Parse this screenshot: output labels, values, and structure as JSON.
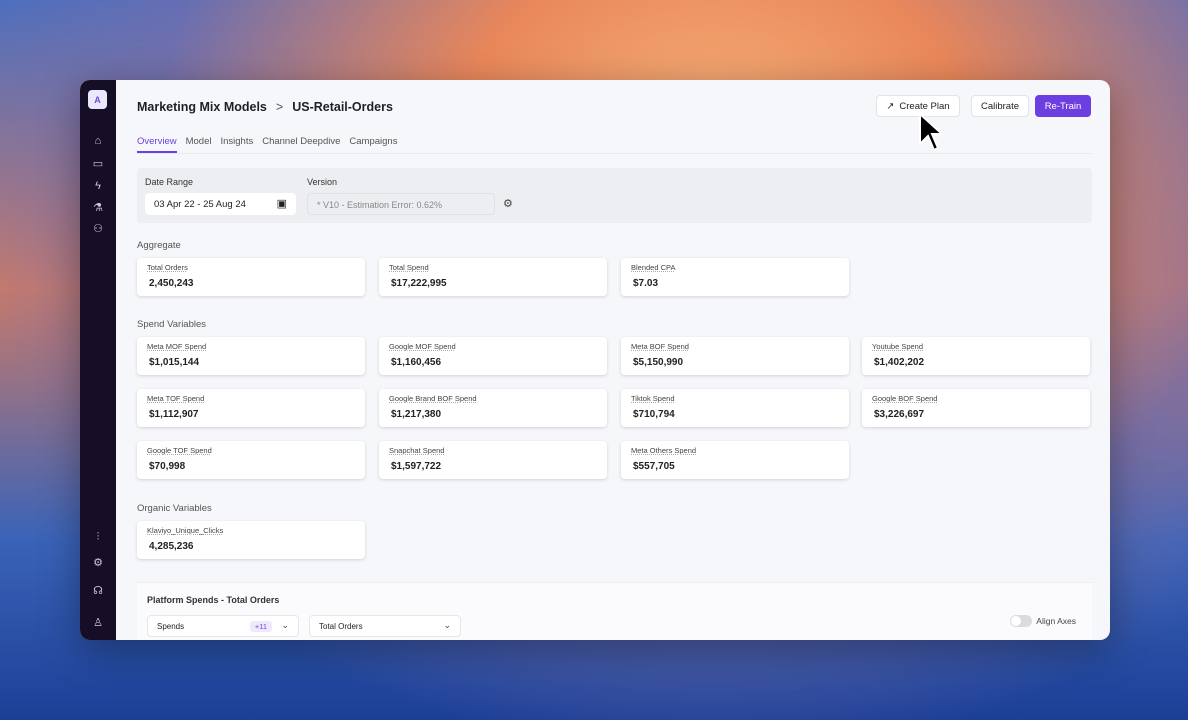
{
  "logo": "A",
  "breadcrumb": {
    "parent": "Marketing Mix Models",
    "separator": ">",
    "current": "US-Retail-Orders"
  },
  "buttons": {
    "create_plan": "Create Plan",
    "calibrate": "Calibrate",
    "retrain": "Re-Train"
  },
  "tabs": [
    {
      "label": "Overview",
      "active": true
    },
    {
      "label": "Model"
    },
    {
      "label": "Insights"
    },
    {
      "label": "Channel Deepdive"
    },
    {
      "label": "Campaigns"
    }
  ],
  "filters": {
    "date_label": "Date Range",
    "date_value": "03 Apr 22 - 25 Aug 24",
    "version_label": "Version",
    "version_value": "* V10 - Estimation Error: 0.62%"
  },
  "aggregate": {
    "title": "Aggregate",
    "cards": [
      {
        "label": "Total Orders",
        "value": "2,450,243"
      },
      {
        "label": "Total Spend",
        "value": "$17,222,995"
      },
      {
        "label": "Blended CPA",
        "value": "$7.03"
      }
    ]
  },
  "spend": {
    "title": "Spend Variables",
    "cards": [
      {
        "label": "Meta MOF Spend",
        "value": "$1,015,144"
      },
      {
        "label": "Google MOF Spend",
        "value": "$1,160,456"
      },
      {
        "label": "Meta BOF Spend",
        "value": "$5,150,990"
      },
      {
        "label": "Youtube Spend",
        "value": "$1,402,202"
      },
      {
        "label": "Meta TOF Spend",
        "value": "$1,112,907"
      },
      {
        "label": "Google Brand BOF Spend",
        "value": "$1,217,380"
      },
      {
        "label": "Tiktok Spend",
        "value": "$710,794"
      },
      {
        "label": "Google BOF Spend",
        "value": "$3,226,697"
      },
      {
        "label": "Google TOF Spend",
        "value": "$70,998"
      },
      {
        "label": "Snapchat Spend",
        "value": "$1,597,722"
      },
      {
        "label": "Meta Others Spend",
        "value": "$557,705"
      }
    ]
  },
  "organic": {
    "title": "Organic Variables",
    "cards": [
      {
        "label": "Klaviyo_Unique_Clicks",
        "value": "4,285,236"
      }
    ]
  },
  "chart_panel": {
    "title": "Platform Spends - Total Orders",
    "spends_select": "Spends",
    "spends_badge": "+11",
    "metric_select": "Total Orders",
    "align_axes_label": "Align Axes",
    "align_axes_on": false
  },
  "colors": {
    "accent": "#6d3ee0",
    "sidebar": "#160d26"
  }
}
